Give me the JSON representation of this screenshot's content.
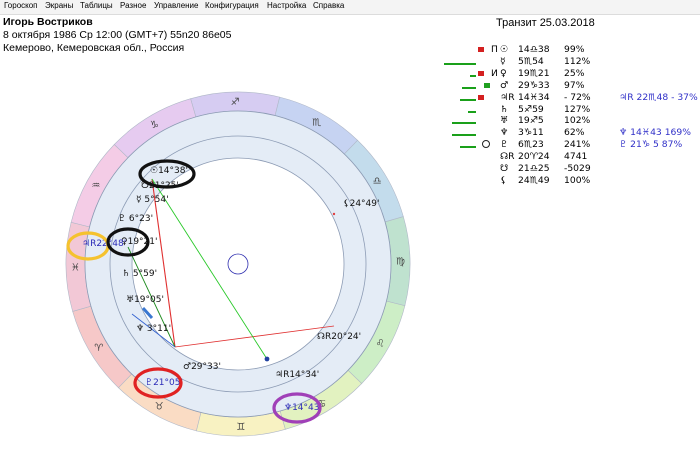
{
  "menu": [
    "Гороскоп",
    "Экраны",
    "Таблицы",
    "Разное",
    "Управление",
    "Конфигурация",
    "Настройка",
    "Справка"
  ],
  "person": {
    "name": "Игорь Востриков",
    "datetime": "8 октября 1986  Ср  12:00 (GMT+7) 55n20  86e05",
    "place": "Кемерово, Кемеровская обл., Россия"
  },
  "transit_title": "Транзит 25.03.2018",
  "table": [
    {
      "bar": 0,
      "mark": "r",
      "sign": "Π",
      "planet": "☉",
      "deg": "14♎38",
      "pct": "99%",
      "t": ""
    },
    {
      "bar": 32,
      "mark": "",
      "sign": "",
      "planet": "☿",
      "deg": "5♏54",
      "pct": "112%",
      "t": ""
    },
    {
      "bar": 6,
      "mark": "r",
      "sign": "И",
      "planet": "♀",
      "deg": "19♏21",
      "pct": "25%",
      "t": ""
    },
    {
      "bar": 14,
      "mark": "g",
      "sign": "",
      "planet": "♂",
      "deg": "29♑33",
      "pct": "97%",
      "t": ""
    },
    {
      "bar": 16,
      "mark": "r",
      "sign": "",
      "planet": "♃R",
      "deg": "14♓34",
      "pct": "- 72%",
      "t": "♃R  22♏48 - 37%"
    },
    {
      "bar": 8,
      "mark": "",
      "sign": "",
      "planet": "♄",
      "deg": "5♐59",
      "pct": "127%",
      "t": ""
    },
    {
      "bar": 24,
      "mark": "",
      "sign": "",
      "planet": "♅",
      "deg": "19♐5",
      "pct": "102%",
      "t": ""
    },
    {
      "bar": 24,
      "mark": "",
      "sign": "",
      "planet": "♆",
      "deg": "3♑11",
      "pct": "62%",
      "t": "♆  14♓43  169%"
    },
    {
      "bar": 16,
      "mark": "o",
      "sign": "",
      "planet": "♇",
      "deg": "6♏23",
      "pct": "241%",
      "t": "♇  21♑ 5   87%"
    },
    {
      "bar": 0,
      "mark": "",
      "sign": "",
      "planet": "☊R",
      "deg": "20♈24",
      "pct": "4741",
      "t": ""
    },
    {
      "bar": 0,
      "mark": "",
      "sign": "",
      "planet": "☋",
      "deg": "21♎25",
      "pct": "-5029",
      "t": ""
    },
    {
      "bar": 0,
      "mark": "",
      "sign": "",
      "planet": "⚸",
      "deg": "24♏49",
      "pct": "100%",
      "t": ""
    }
  ],
  "wheel": {
    "zodiac": [
      {
        "glyph": "♈",
        "color": "#f6c8c8"
      },
      {
        "glyph": "♉",
        "color": "#fadcc4"
      },
      {
        "glyph": "♊",
        "color": "#f8f2c2"
      },
      {
        "glyph": "♋",
        "color": "#e2f2c0"
      },
      {
        "glyph": "♌",
        "color": "#cdeec6"
      },
      {
        "glyph": "♍",
        "color": "#bfe2cf"
      },
      {
        "glyph": "♎",
        "color": "#c3dcec"
      },
      {
        "glyph": "♏",
        "color": "#c6d3f2"
      },
      {
        "glyph": "♐",
        "color": "#d6ccf2"
      },
      {
        "glyph": "♑",
        "color": "#e6cbf0"
      },
      {
        "glyph": "♒",
        "color": "#f4cce6"
      },
      {
        "glyph": "♓",
        "color": "#f2c8d6"
      }
    ],
    "natal_labels": [
      {
        "text": "☉14°38'"
      },
      {
        "text": "☿ 5°54'"
      },
      {
        "text": "♀19°21'"
      },
      {
        "text": "♂29°33'"
      },
      {
        "text": "♃R14°34'"
      },
      {
        "text": "♄ 5°59'"
      },
      {
        "text": "♅19°05'"
      },
      {
        "text": "♆ 3°11'"
      },
      {
        "text": "♇ 6°23'"
      },
      {
        "text": "☊R20°24'"
      },
      {
        "text": "⚸24°49'"
      },
      {
        "text": "☋21°25'"
      }
    ],
    "transit_labels": [
      {
        "text": "♃R22°48'",
        "ring": "#f5c22e"
      },
      {
        "text": "♇21°05'",
        "ring": "#e02222"
      },
      {
        "text": "♆14°43'",
        "ring": "#a040b8"
      }
    ]
  }
}
